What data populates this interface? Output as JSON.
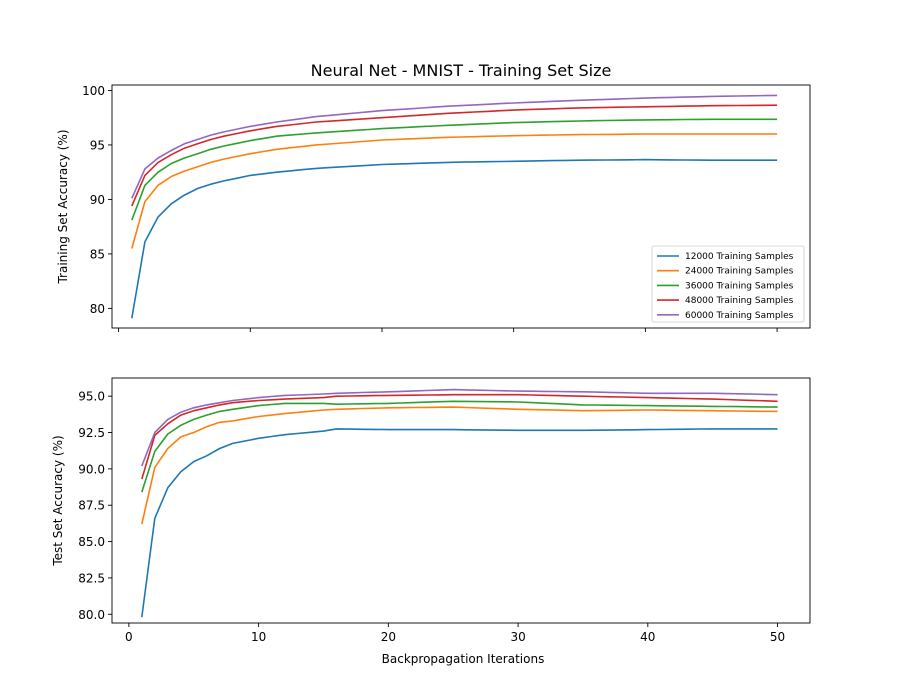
{
  "figure": {
    "title": "Neural Net - MNIST - Training Set Size"
  },
  "chart_data": [
    {
      "type": "line",
      "title": "Neural Net - MNIST - Training Set Size",
      "xlabel": "",
      "ylabel": "Training Set Accuracy (%)",
      "xlim": [
        -0.5,
        52.5
      ],
      "ylim": [
        78.2,
        100.5
      ],
      "xticks": [
        0,
        10,
        20,
        30,
        40,
        50
      ],
      "xtick_labels_visible": false,
      "yticks": [
        80,
        85,
        90,
        95,
        100
      ],
      "ytick_labels": [
        "80",
        "85",
        "90",
        "95",
        "100"
      ],
      "legend": "lower-right",
      "grid": false,
      "anchors_x": [
        1,
        2,
        3,
        4,
        5,
        6,
        7,
        8,
        10,
        12,
        15,
        20,
        25,
        30,
        35,
        40,
        45,
        50
      ],
      "series": [
        {
          "name": "12000 Training Samples",
          "color": "#1f77b4",
          "anchors_y": [
            79.1,
            86.1,
            88.4,
            89.6,
            90.4,
            91.0,
            91.4,
            91.7,
            92.2,
            92.5,
            92.85,
            93.2,
            93.4,
            93.5,
            93.6,
            93.65,
            93.6,
            93.6
          ]
        },
        {
          "name": "24000 Training Samples",
          "color": "#ff7f0e",
          "anchors_y": [
            85.5,
            89.8,
            91.3,
            92.1,
            92.6,
            93.0,
            93.4,
            93.7,
            94.2,
            94.6,
            95.0,
            95.45,
            95.7,
            95.85,
            95.95,
            96.0,
            96.0,
            96.0
          ]
        },
        {
          "name": "36000 Training Samples",
          "color": "#2ca02c",
          "anchors_y": [
            88.1,
            91.3,
            92.5,
            93.3,
            93.8,
            94.2,
            94.6,
            94.9,
            95.4,
            95.8,
            96.1,
            96.5,
            96.8,
            97.05,
            97.2,
            97.3,
            97.35,
            97.35
          ]
        },
        {
          "name": "48000 Training Samples",
          "color": "#d62728",
          "anchors_y": [
            89.4,
            92.2,
            93.4,
            94.1,
            94.7,
            95.1,
            95.5,
            95.8,
            96.3,
            96.7,
            97.1,
            97.5,
            97.9,
            98.2,
            98.4,
            98.5,
            98.6,
            98.65
          ]
        },
        {
          "name": "60000 Training Samples",
          "color": "#9467bd",
          "anchors_y": [
            90.1,
            92.8,
            93.8,
            94.5,
            95.1,
            95.5,
            95.9,
            96.2,
            96.7,
            97.1,
            97.6,
            98.15,
            98.55,
            98.85,
            99.1,
            99.3,
            99.45,
            99.55
          ]
        }
      ]
    },
    {
      "type": "line",
      "title": "",
      "xlabel": "Backpropagation Iterations",
      "ylabel": "Test Set Accuracy (%)",
      "xlim": [
        -1.3,
        52.5
      ],
      "ylim": [
        79.4,
        96.25
      ],
      "xticks": [
        0,
        10,
        20,
        30,
        40,
        50
      ],
      "xtick_labels": [
        "0",
        "10",
        "20",
        "30",
        "40",
        "50"
      ],
      "yticks": [
        80.0,
        82.5,
        85.0,
        87.5,
        90.0,
        92.5,
        95.0
      ],
      "ytick_labels": [
        "80.0",
        "82.5",
        "85.0",
        "87.5",
        "90.0",
        "92.5",
        "95.0"
      ],
      "grid": false,
      "anchors_x": [
        1,
        2,
        3,
        4,
        5,
        6,
        7,
        8,
        10,
        12,
        15,
        16,
        20,
        25,
        30,
        35,
        40,
        45,
        50
      ],
      "series": [
        {
          "name": "12000 Training Samples",
          "color": "#1f77b4",
          "anchors_y": [
            79.8,
            86.6,
            88.7,
            89.8,
            90.5,
            90.9,
            91.4,
            91.75,
            92.1,
            92.35,
            92.6,
            92.75,
            92.7,
            92.7,
            92.65,
            92.65,
            92.7,
            92.75,
            92.75
          ]
        },
        {
          "name": "24000 Training Samples",
          "color": "#ff7f0e",
          "anchors_y": [
            86.2,
            90.1,
            91.4,
            92.2,
            92.5,
            92.9,
            93.2,
            93.3,
            93.6,
            93.8,
            94.05,
            94.1,
            94.2,
            94.25,
            94.1,
            94.0,
            94.05,
            94.0,
            93.95
          ]
        },
        {
          "name": "36000 Training Samples",
          "color": "#2ca02c",
          "anchors_y": [
            88.4,
            91.2,
            92.4,
            93.0,
            93.4,
            93.7,
            93.95,
            94.1,
            94.35,
            94.5,
            94.5,
            94.45,
            94.5,
            94.65,
            94.6,
            94.4,
            94.35,
            94.3,
            94.25
          ]
        },
        {
          "name": "48000 Training Samples",
          "color": "#d62728",
          "anchors_y": [
            89.3,
            92.3,
            93.1,
            93.7,
            94.0,
            94.2,
            94.4,
            94.55,
            94.7,
            94.8,
            94.9,
            95.0,
            95.05,
            95.1,
            95.1,
            95.0,
            94.9,
            94.8,
            94.65
          ]
        },
        {
          "name": "60000 Training Samples",
          "color": "#9467bd",
          "anchors_y": [
            90.2,
            92.5,
            93.4,
            93.9,
            94.2,
            94.4,
            94.55,
            94.7,
            94.9,
            95.05,
            95.15,
            95.2,
            95.3,
            95.45,
            95.35,
            95.3,
            95.2,
            95.2,
            95.1
          ]
        }
      ]
    }
  ]
}
